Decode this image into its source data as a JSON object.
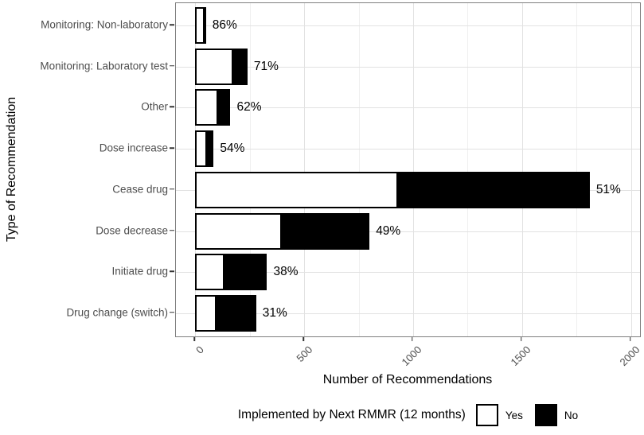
{
  "y_axis": {
    "title": "Type of Recommendation"
  },
  "x_axis": {
    "title": "Number of Recommendations"
  },
  "legend": {
    "title": "Implemented by Next RMMR (12 months)",
    "items": [
      {
        "label": "Yes",
        "fill": "#ffffff"
      },
      {
        "label": "No",
        "fill": "#000000"
      }
    ]
  },
  "chart_data": {
    "type": "bar",
    "orientation": "horizontal",
    "stacked": true,
    "title": "",
    "xlabel": "Number of Recommendations",
    "ylabel": "Type of Recommendation",
    "categories": [
      "Monitoring: Non-laboratory",
      "Monitoring: Laboratory test",
      "Other",
      "Dose increase",
      "Cease drug",
      "Dose decrease",
      "Initiate drug",
      "Drug change (switch)"
    ],
    "series": [
      {
        "name": "Yes",
        "fill": "#ffffff",
        "values": [
          43,
          170,
          100,
          46,
          925,
          392,
          125,
          87
        ]
      },
      {
        "name": "No",
        "fill": "#000000",
        "values": [
          7,
          70,
          62,
          39,
          885,
          408,
          205,
          193
        ]
      }
    ],
    "bar_labels": [
      "86%",
      "71%",
      "62%",
      "54%",
      "51%",
      "49%",
      "38%",
      "31%"
    ],
    "x_ticks": [
      "0",
      "500",
      "1000",
      "1500",
      "2000"
    ],
    "x_tick_values": [
      0,
      500,
      1000,
      1500,
      2000
    ],
    "x_minor_values": [
      250,
      750,
      1250,
      1750
    ],
    "xlim": [
      -88,
      2048
    ],
    "grid": true,
    "legend_position": "bottom"
  },
  "colors": {
    "bar_outline": "#000000",
    "grid_major": "#e2e2e2",
    "grid_minor": "#efefef",
    "panel_border": "#7f7f7f",
    "axis_text": "#4d4d4d",
    "label_text": "#000000"
  }
}
